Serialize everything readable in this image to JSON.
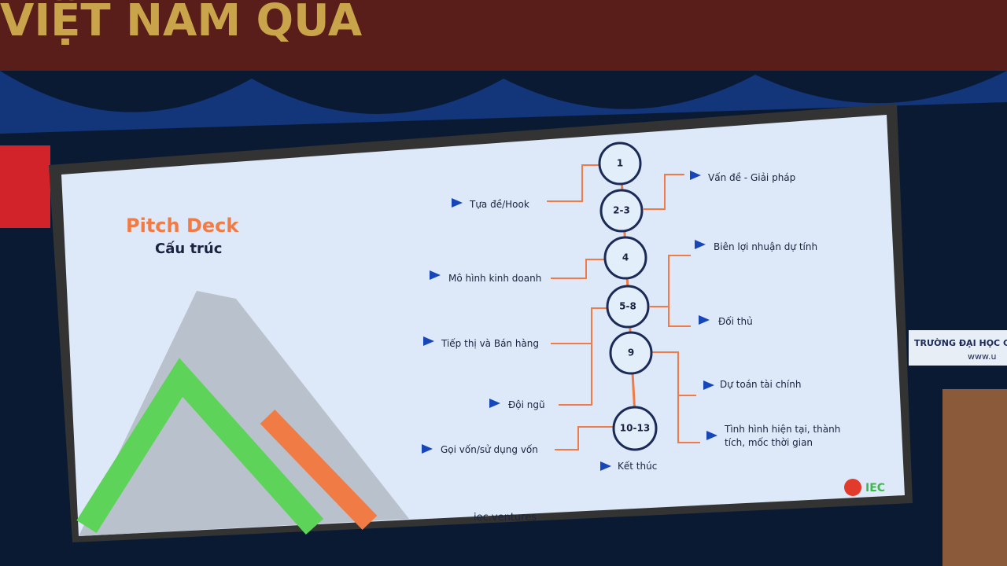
{
  "banner": {
    "text": "VIỆT NAM QUA"
  },
  "sign": {
    "line1": "TRƯỜNG ĐẠI HỌC C",
    "line2": "www.u"
  },
  "slide": {
    "title": "Pitch Deck",
    "subtitle": "Cấu trúc",
    "footer": "iec.ventures",
    "logo": "IEC"
  },
  "nodes": [
    {
      "label": "1"
    },
    {
      "label": "2-3"
    },
    {
      "label": "4"
    },
    {
      "label": "5-8"
    },
    {
      "label": "9"
    },
    {
      "label": "10-13"
    }
  ],
  "labels": [
    "Tựa đề/Hook",
    "Vấn đề - Giải pháp",
    "Mô hình kinh doanh",
    "Biên lợi nhuận dự tính",
    "Đối thủ",
    "Tiếp thị và Bán hàng",
    "Đội ngũ",
    "Dự toán tài chính",
    "Tình hình hiện tại, thành",
    "tích, mốc thời gian",
    "Gọi vốn/sử dụng vốn",
    "Kết thúc"
  ]
}
